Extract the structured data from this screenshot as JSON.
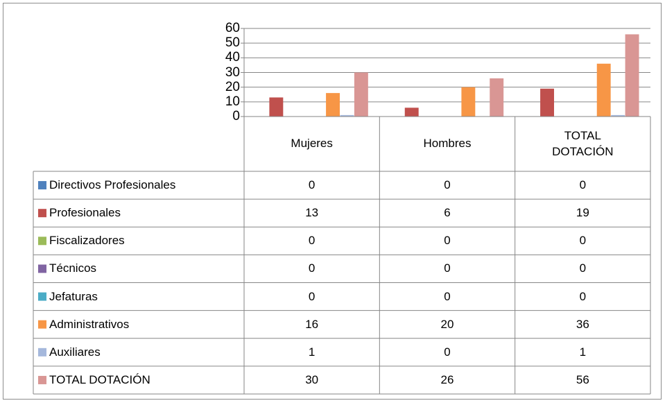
{
  "chart_data": {
    "type": "bar",
    "categories": [
      "Mujeres",
      "Hombres",
      "TOTAL DOTACIÓN"
    ],
    "series": [
      {
        "name": "Directivos Profesionales",
        "color": "#4f81bd",
        "values": [
          0,
          0,
          0
        ]
      },
      {
        "name": "Profesionales",
        "color": "#c0504d",
        "values": [
          13,
          6,
          19
        ]
      },
      {
        "name": "Fiscalizadores",
        "color": "#9bbb59",
        "values": [
          0,
          0,
          0
        ]
      },
      {
        "name": "Técnicos",
        "color": "#8064a2",
        "values": [
          0,
          0,
          0
        ]
      },
      {
        "name": "Jefaturas",
        "color": "#4bacc6",
        "values": [
          0,
          0,
          0
        ]
      },
      {
        "name": "Administrativos",
        "color": "#f79646",
        "values": [
          16,
          20,
          36
        ]
      },
      {
        "name": "Auxiliares",
        "color": "#a5b8dc",
        "values": [
          1,
          0,
          1
        ]
      },
      {
        "name": "TOTAL DOTACIÓN",
        "color": "#d99694",
        "values": [
          30,
          26,
          56
        ]
      }
    ],
    "ylim": [
      0,
      60
    ],
    "yticks": [
      0,
      10,
      20,
      30,
      40,
      50,
      60
    ],
    "grid": true
  }
}
